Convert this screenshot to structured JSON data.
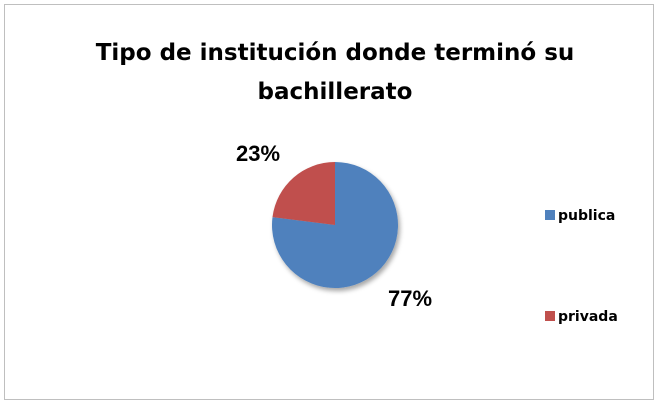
{
  "chart_data": {
    "type": "pie",
    "title": "Tipo de institución donde terminó su bachillerato",
    "categories": [
      "publica",
      "privada"
    ],
    "values": [
      77,
      23
    ],
    "value_labels": [
      "77%",
      "23%"
    ],
    "colors": [
      "#4f81bd",
      "#c0504d"
    ],
    "legend": "right"
  }
}
